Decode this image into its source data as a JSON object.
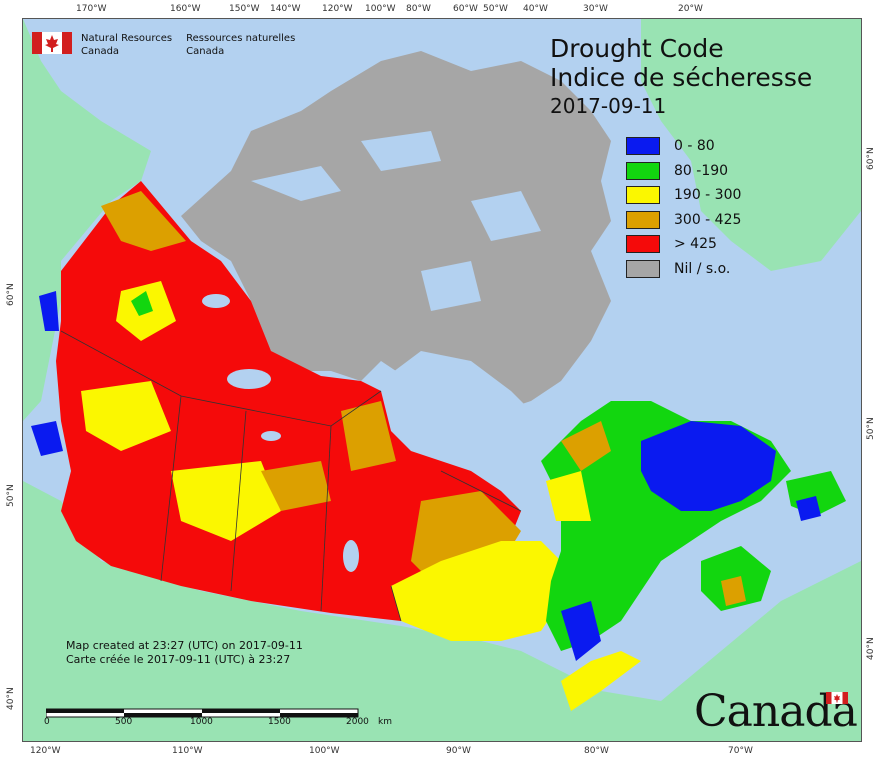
{
  "header": {
    "ministry_en_line1": "Natural Resources",
    "ministry_en_line2": "Canada",
    "ministry_fr_line1": "Ressources naturelles",
    "ministry_fr_line2": "Canada"
  },
  "title": {
    "line1": "Drought Code",
    "line2": "Indice de sécheresse",
    "date": "2017-09-11"
  },
  "legend": [
    {
      "label": "0 - 80",
      "color": "#0a1af0"
    },
    {
      "label": "80 -190",
      "color": "#12d60f"
    },
    {
      "label": "190 - 300",
      "color": "#fbf700"
    },
    {
      "label": "300 - 425",
      "color": "#dca000"
    },
    {
      "label": "> 425",
      "color": "#f50a0a"
    },
    {
      "label": "Nil / s.o.",
      "color": "#a6a6a6"
    }
  ],
  "top_longitudes": [
    "170°W",
    "160°W",
    "150°W",
    "140°W",
    "120°W",
    "100°W",
    "80°W",
    "60°W",
    "50°W",
    "40°W",
    "30°W",
    "20°W"
  ],
  "bottom_longitudes": [
    "120°W",
    "110°W",
    "100°W",
    "90°W",
    "80°W",
    "70°W"
  ],
  "left_latitudes": [
    "60°N",
    "50°N",
    "40°N"
  ],
  "right_latitudes": [
    "60°N",
    "50°N",
    "40°N"
  ],
  "credits": {
    "line1": "Map created at 23:27 (UTC) on 2017-09-11",
    "line2": "Carte créée le 2017-09-11 (UTC) à 23:27"
  },
  "scale": {
    "ticks": [
      "0",
      "500",
      "1000",
      "1500",
      "2000"
    ],
    "unit": "km"
  },
  "wordmark": "Canada",
  "colors": {
    "ocean": "#b3d1f0",
    "land_other": "#99e3b3",
    "nil": "#a6a6a6"
  }
}
